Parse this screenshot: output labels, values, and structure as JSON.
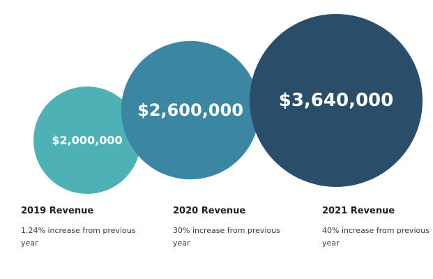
{
  "chart_data": {
    "type": "bubble",
    "series": [
      {
        "name": "2019 Revenue",
        "value": 2000000,
        "value_label": "$2,000,000",
        "description": "1.24% increase from previous year",
        "color": "#4eb1b5"
      },
      {
        "name": "2020 Revenue",
        "value": 2600000,
        "value_label": "$2,600,000",
        "description": "30% increase from previous year",
        "color": "#3a86a3"
      },
      {
        "name": "2021 Revenue",
        "value": 3640000,
        "value_label": "$3,640,000",
        "description": "40% increase from previous year",
        "color": "#2a4e69"
      }
    ]
  }
}
